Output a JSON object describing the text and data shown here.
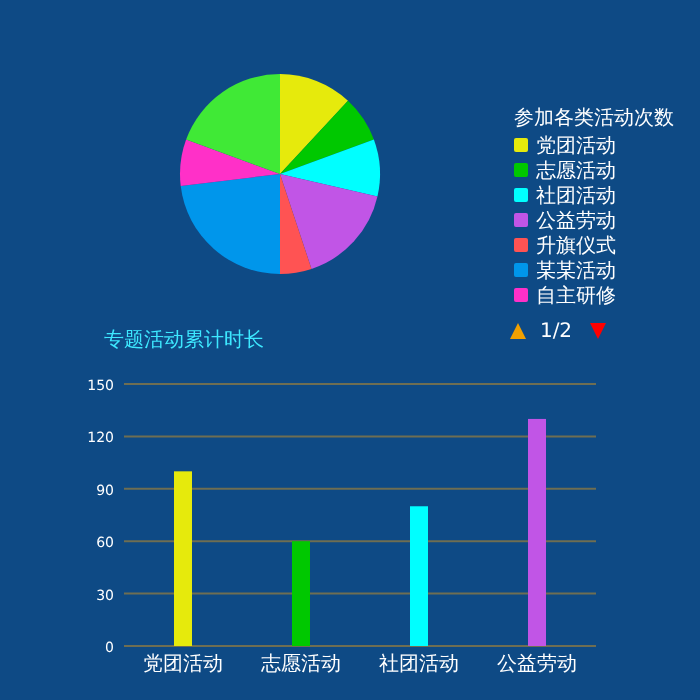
{
  "chart_data": [
    {
      "type": "pie",
      "title": "参加各类活动次数",
      "categories": [
        "党团活动",
        "志愿活动",
        "社团活动",
        "公益劳动",
        "升旗仪式",
        "某某活动",
        "自主研修",
        null
      ],
      "values": [
        11.9,
        7.5,
        9.2,
        16.3,
        5.1,
        23.1,
        7.5,
        19.4
      ],
      "colors": [
        "#e6ea0c",
        "#00c800",
        "#00ffff",
        "#c155e6",
        "#ff5353",
        "#0096eb",
        "#ff30c8",
        "#40e936"
      ],
      "legend": "right",
      "annotations": [
        "1/2"
      ]
    },
    {
      "type": "bar",
      "title": "专题活动累计时长",
      "categories": [
        "党团活动",
        "志愿活动",
        "社团活动",
        "公益劳动"
      ],
      "values": [
        100,
        60,
        80,
        130
      ],
      "colors": [
        "#e6ea0c",
        "#00c800",
        "#00ffff",
        "#c155e6"
      ],
      "ylim": [
        0,
        150
      ],
      "yticks": [
        0,
        30,
        60,
        90,
        120,
        150
      ],
      "grid": "y"
    }
  ]
}
